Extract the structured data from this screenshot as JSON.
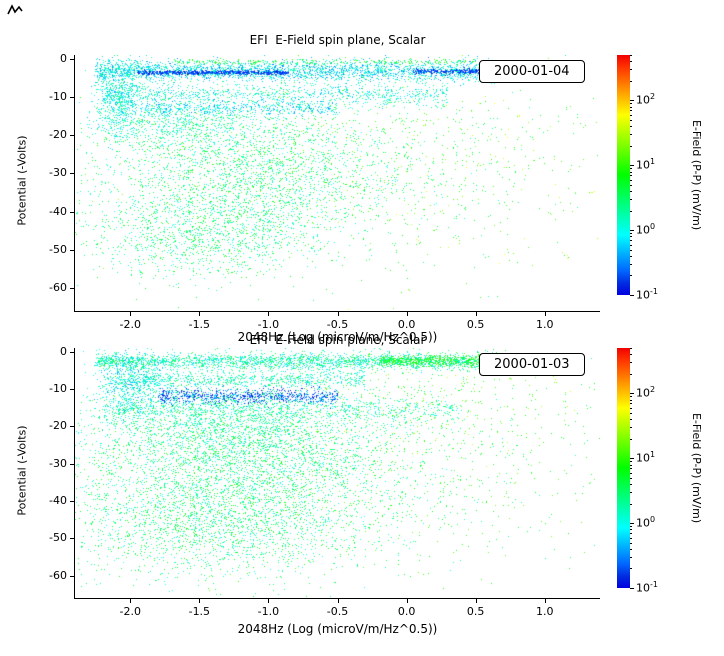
{
  "chart_data": [
    {
      "type": "scatter",
      "title": "EFI  E-Field spin plane, Scalar",
      "legend_label": "2000-01-04",
      "xlabel": "2048Hz (Log (microV/m/Hz^0.5))",
      "ylabel": "Potential (-Volts)",
      "xlim": [
        -2.4,
        1.4
      ],
      "ylim": [
        -66,
        1
      ],
      "x_ticks": {
        "values": [
          -2.0,
          -1.5,
          -1.0,
          -0.5,
          0.0,
          0.5,
          1.0
        ],
        "labels": [
          "-2.0",
          "-1.5",
          "-1.0",
          "-0.5",
          "0.0",
          "0.5",
          "1.0"
        ]
      },
      "y_ticks": {
        "values": [
          0,
          -10,
          -20,
          -30,
          -40,
          -50,
          -60
        ],
        "labels": [
          "0",
          "-10",
          "-20",
          "-30",
          "-40",
          "-50",
          "-60"
        ]
      },
      "colorbar": {
        "label": "E-Field (P-P) (mV/m)",
        "log10_range": [
          -1,
          2.7
        ],
        "tick_exponents": [
          2,
          1,
          0,
          -1
        ]
      },
      "seed": 20000104,
      "point_clusters": [
        {
          "shape": "uniform",
          "x_min": -2.25,
          "x_max": 0.72,
          "y": -3.2,
          "y_spread": 1.3,
          "n": 2600,
          "log10_v": [
            -0.6,
            0.4
          ]
        },
        {
          "shape": "uniform",
          "x_min": -1.95,
          "x_max": -0.85,
          "y": -3.6,
          "y_spread": 0.25,
          "n": 700,
          "log10_v": [
            -1.0,
            -0.55
          ]
        },
        {
          "shape": "uniform",
          "x_min": 0.05,
          "x_max": 0.68,
          "y": -3.3,
          "y_spread": 0.3,
          "n": 350,
          "log10_v": [
            -1.0,
            -0.5
          ]
        },
        {
          "shape": "uniform",
          "x_min": -1.7,
          "x_max": 0.5,
          "y": -0.8,
          "y_spread": 0.35,
          "n": 260,
          "log10_v": [
            0.2,
            1.0
          ]
        },
        {
          "shape": "gauss",
          "x": -2.08,
          "x_spread": 0.09,
          "y": -10,
          "y_spread": 5.5,
          "n": 800,
          "log10_v": [
            -0.4,
            0.5
          ]
        },
        {
          "shape": "uniform",
          "x_min": -2.2,
          "x_max": 0.3,
          "y": -9.5,
          "y_spread": 1.6,
          "n": 1000,
          "log10_v": [
            -0.4,
            0.5
          ]
        },
        {
          "shape": "uniform",
          "x_min": -1.9,
          "x_max": -0.5,
          "y": -13,
          "y_spread": 1.0,
          "n": 450,
          "log10_v": [
            -0.6,
            0.2
          ]
        },
        {
          "shape": "gauss",
          "x": -1.6,
          "x_spread": 0.3,
          "y": -17,
          "y_spread": 3,
          "n": 500,
          "log10_v": [
            -0.2,
            0.6
          ]
        },
        {
          "shape": "gauss",
          "x": -1.15,
          "x_spread": 0.55,
          "y": -30,
          "y_spread": 9,
          "n": 2400,
          "log10_v": [
            -0.1,
            0.9
          ]
        },
        {
          "shape": "gauss",
          "x": -1.5,
          "x_spread": 0.45,
          "y": -46,
          "y_spread": 6,
          "n": 1100,
          "log10_v": [
            -0.1,
            0.9
          ]
        },
        {
          "shape": "gauss",
          "x": -0.4,
          "x_spread": 1.0,
          "y": -27,
          "y_spread": 14,
          "n": 900,
          "log10_v": [
            0.2,
            1.4
          ]
        },
        {
          "shape": "gauss",
          "x": 0.5,
          "x_spread": 0.6,
          "y": -25,
          "y_spread": 18,
          "n": 180,
          "log10_v": [
            0.5,
            1.8
          ]
        }
      ]
    },
    {
      "type": "scatter",
      "title": "EFI  E-Field spin plane, Scalar",
      "legend_label": "2000-01-03",
      "xlabel": "2048Hz (Log (microV/m/Hz^0.5))",
      "ylabel": "Potential (-Volts)",
      "xlim": [
        -2.4,
        1.4
      ],
      "ylim": [
        -66,
        1
      ],
      "x_ticks": {
        "values": [
          -2.0,
          -1.5,
          -1.0,
          -0.5,
          0.0,
          0.5,
          1.0
        ],
        "labels": [
          "-2.0",
          "-1.5",
          "-1.0",
          "-0.5",
          "0.0",
          "0.5",
          "1.0"
        ]
      },
      "y_ticks": {
        "values": [
          0,
          -10,
          -20,
          -30,
          -40,
          -50,
          -60
        ],
        "labels": [
          "0",
          "-10",
          "-20",
          "-30",
          "-40",
          "-50",
          "-60"
        ]
      },
      "colorbar": {
        "label": "E-Field (P-P) (mV/m)",
        "log10_range": [
          -1,
          2.7
        ],
        "tick_exponents": [
          2,
          1,
          0,
          -1
        ]
      },
      "seed": 20000103,
      "point_clusters": [
        {
          "shape": "uniform",
          "x_min": -2.25,
          "x_max": 0.65,
          "y": -2.6,
          "y_spread": 1.1,
          "n": 2400,
          "log10_v": [
            -0.3,
            0.7
          ]
        },
        {
          "shape": "uniform",
          "x_min": -0.2,
          "x_max": 0.65,
          "y": -2.4,
          "y_spread": 0.7,
          "n": 500,
          "log10_v": [
            0.4,
            1.2
          ]
        },
        {
          "shape": "uniform",
          "x_min": -2.2,
          "x_max": -0.3,
          "y": -7.5,
          "y_spread": 1.2,
          "n": 800,
          "log10_v": [
            -0.3,
            0.6
          ]
        },
        {
          "shape": "uniform",
          "x_min": -1.8,
          "x_max": -0.5,
          "y": -12,
          "y_spread": 1.0,
          "n": 900,
          "log10_v": [
            -1.0,
            -0.3
          ]
        },
        {
          "shape": "gauss",
          "x": -2.0,
          "x_spread": 0.12,
          "y": -9,
          "y_spread": 5,
          "n": 600,
          "log10_v": [
            -0.5,
            0.4
          ]
        },
        {
          "shape": "uniform",
          "x_min": -2.2,
          "x_max": 0.4,
          "y": -15.5,
          "y_spread": 1.5,
          "n": 700,
          "log10_v": [
            -0.2,
            0.6
          ]
        },
        {
          "shape": "gauss",
          "x": -1.25,
          "x_spread": 0.55,
          "y": -20,
          "y_spread": 6,
          "n": 1800,
          "log10_v": [
            -0.2,
            0.8
          ]
        },
        {
          "shape": "gauss",
          "x": -1.2,
          "x_spread": 0.6,
          "y": -32,
          "y_spread": 8,
          "n": 2200,
          "log10_v": [
            -0.1,
            0.9
          ]
        },
        {
          "shape": "gauss",
          "x": -1.4,
          "x_spread": 0.6,
          "y": -47,
          "y_spread": 7,
          "n": 1800,
          "log10_v": [
            -0.1,
            0.9
          ]
        },
        {
          "shape": "gauss",
          "x": -0.3,
          "x_spread": 1.0,
          "y": -30,
          "y_spread": 15,
          "n": 1100,
          "log10_v": [
            0.2,
            1.3
          ]
        },
        {
          "shape": "gauss",
          "x": 0.35,
          "x_spread": 0.5,
          "y": -12,
          "y_spread": 10,
          "n": 300,
          "log10_v": [
            0.4,
            1.6
          ]
        }
      ]
    }
  ]
}
